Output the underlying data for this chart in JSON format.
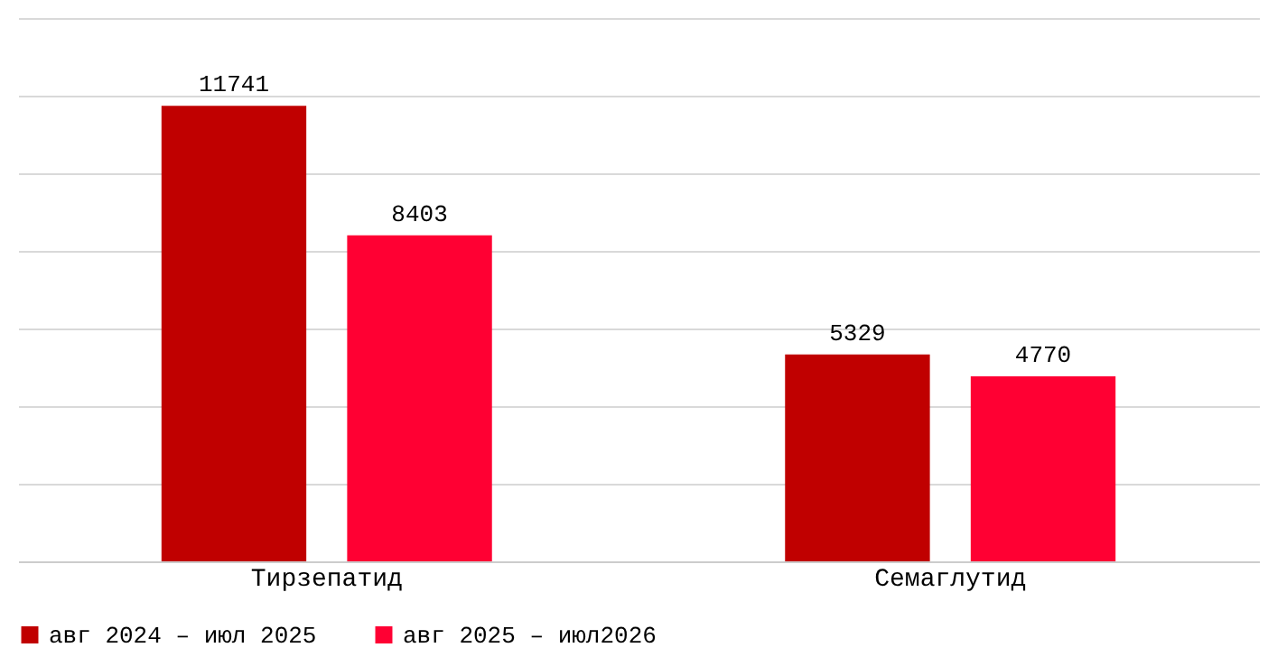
{
  "chart_data": {
    "type": "bar",
    "categories": [
      "Тирзепатид",
      "Семаглутид"
    ],
    "series": [
      {
        "name": "авг 2024 – июл 2025",
        "color": "#c00000",
        "values": [
          11741,
          5329
        ]
      },
      {
        "name": "авг 2025 – июл2026",
        "color": "#ff0033",
        "values": [
          8403,
          4770
        ]
      }
    ],
    "ylim": [
      0,
      14000
    ],
    "yticks": [
      {
        "value": 0,
        "label": null
      },
      {
        "value": 2000,
        "label": null
      },
      {
        "value": 4000,
        "label": null
      },
      {
        "value": 6000,
        "label": null
      },
      {
        "value": 8000,
        "label": null
      },
      {
        "value": 10000,
        "label": null
      },
      {
        "value": 12000,
        "label": null
      },
      {
        "value": 14000,
        "label": null
      }
    ],
    "tick_labels": "x",
    "grid": "y",
    "legend": "bottom",
    "data_labels": true
  }
}
